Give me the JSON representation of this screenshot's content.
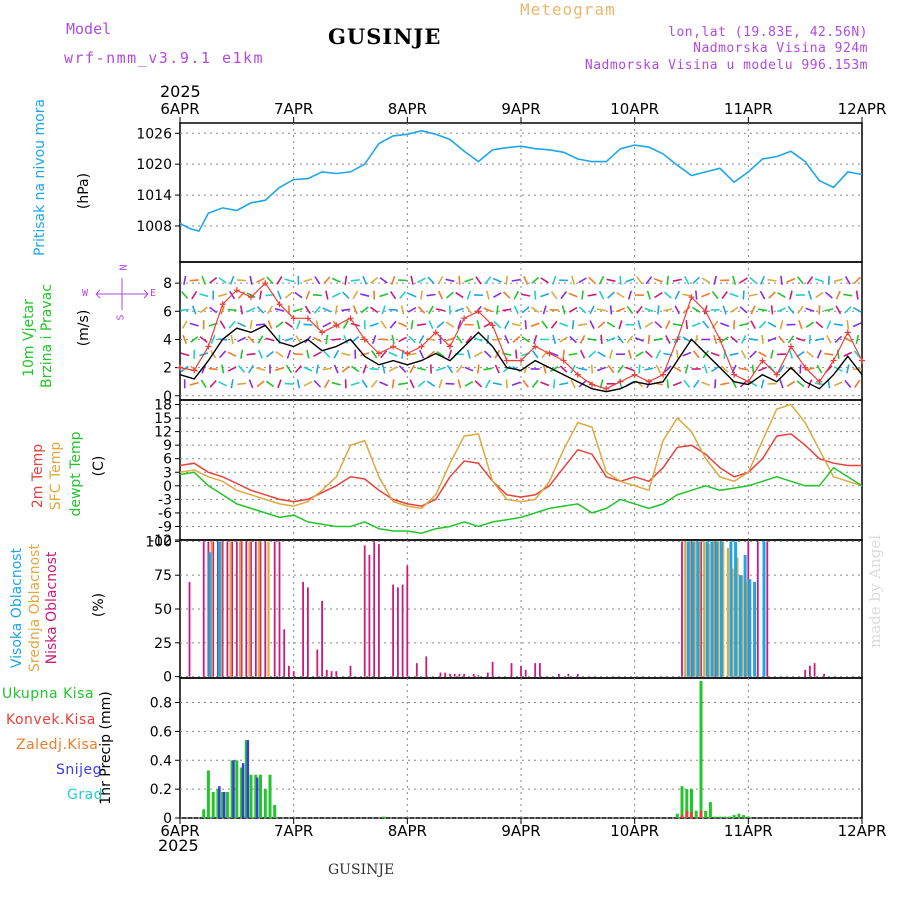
{
  "header": {
    "model_label": "Model",
    "model_name": "wrf-nmm_v3.9.1 e1km",
    "station": "GUSINJE",
    "meteogram": "Meteogram",
    "lonlat": "lon,lat (19.83E, 42.56N)",
    "altitude": "Nadmorska Visina 924m",
    "model_altitude": "Nadmorska Visina u modelu 996.153m",
    "year_top": "2025",
    "year_bottom": "2025",
    "footer_station": "GUSINJE",
    "watermark": "made by Angel"
  },
  "colors": {
    "pressure": "#1ea6e8",
    "temp2m": "#e8413c",
    "sfc_temp": "#e0a840",
    "dewpoint": "#22c52a",
    "wind_gust": "#e8413c",
    "wind_speed": "#000000",
    "cloud_high": "#1ea6e8",
    "cloud_mid": "#e0a840",
    "cloud_low": "#cc1a7a",
    "precip_total": "#22c52a",
    "precip_conv": "#e8413c",
    "precip_frozen": "#f07b28",
    "precip_snow": "#3a3ae0",
    "precip_graupel": "#22d0c8",
    "axis_violet": "#b04be0"
  },
  "dates": [
    "6APR",
    "7APR",
    "8APR",
    "9APR",
    "10APR",
    "11APR",
    "12APR"
  ],
  "chart_data": [
    {
      "type": "line",
      "panel": "pressure",
      "ylabel": "(hPa)",
      "side_labels": [
        "Pritisak na nivou mora"
      ],
      "yticks": [
        1008,
        1014,
        1020,
        1026
      ],
      "ylim": [
        1001,
        1028
      ],
      "x_unit": "hours since 6APR 00",
      "series": [
        {
          "x": [
            0,
            2,
            4,
            6,
            9,
            12,
            15,
            18,
            21,
            24,
            27,
            30,
            33,
            36,
            39,
            42,
            45,
            48,
            51,
            54,
            57,
            60,
            63,
            66,
            69,
            72,
            75,
            78,
            81,
            84,
            87,
            90,
            93,
            96,
            99,
            102,
            105,
            108,
            111,
            114,
            117,
            120,
            123,
            126,
            129,
            132,
            135,
            138,
            141,
            144
          ],
          "values": [
            1008.5,
            1007.5,
            1007,
            1010.5,
            1011.5,
            1011,
            1012.5,
            1013,
            1015.5,
            1017,
            1017.2,
            1018.5,
            1018.2,
            1018.5,
            1020,
            1024,
            1025.5,
            1025.8,
            1026.5,
            1025.8,
            1024.8,
            1022.5,
            1020.5,
            1022.8,
            1023.2,
            1023.5,
            1023,
            1022.8,
            1022.3,
            1021,
            1020.5,
            1020.5,
            1023,
            1023.7,
            1023.3,
            1022,
            1019.8,
            1017.8,
            1018.5,
            1019.2,
            1016.5,
            1018.5,
            1021,
            1021.5,
            1022.5,
            1020.5,
            1016.8,
            1015.5,
            1018.5,
            1018
          ]
        }
      ]
    },
    {
      "type": "line",
      "panel": "wind",
      "ylabel": "(m/s)",
      "side_labels": [
        "10m Vjetar",
        "Brzina i Pravac"
      ],
      "direction_key": {
        "north": "N",
        "south": "S",
        "west": "W",
        "east": "E"
      },
      "yticks": [
        0,
        2,
        4,
        6,
        8
      ],
      "ylim": [
        -0.3,
        9.5
      ],
      "x_unit": "hours since 6APR 00",
      "series": [
        {
          "name": "speed",
          "x": [
            0,
            3,
            6,
            9,
            12,
            15,
            18,
            21,
            24,
            27,
            30,
            33,
            36,
            39,
            42,
            45,
            48,
            51,
            54,
            57,
            60,
            63,
            66,
            69,
            72,
            75,
            78,
            81,
            84,
            87,
            90,
            93,
            96,
            99,
            102,
            105,
            108,
            111,
            114,
            117,
            120,
            123,
            126,
            129,
            132,
            135,
            138,
            141,
            144
          ],
          "values": [
            1.5,
            1.2,
            2.5,
            4,
            4.8,
            4.5,
            5,
            3.8,
            3.5,
            4,
            3.2,
            3.5,
            4,
            2.8,
            2.2,
            2.5,
            2.2,
            2.5,
            3,
            2.5,
            3.5,
            4.5,
            3.5,
            2,
            1.8,
            2.5,
            2,
            1.5,
            1,
            0.5,
            0.3,
            0.5,
            1,
            0.8,
            1,
            2.5,
            4,
            3,
            2,
            1,
            0.8,
            1.5,
            1,
            2,
            1,
            0.5,
            1.5,
            2.8,
            1.5
          ]
        },
        {
          "name": "gust",
          "x": [
            0,
            3,
            6,
            9,
            12,
            15,
            18,
            21,
            24,
            27,
            30,
            33,
            36,
            39,
            42,
            45,
            48,
            51,
            54,
            57,
            60,
            63,
            66,
            69,
            72,
            75,
            78,
            81,
            84,
            87,
            90,
            93,
            96,
            99,
            102,
            105,
            108,
            111,
            114,
            117,
            120,
            123,
            126,
            129,
            132,
            135,
            138,
            141,
            144
          ],
          "values": [
            2,
            1.8,
            3.5,
            6.5,
            7.5,
            7,
            8,
            6.5,
            5.5,
            5.5,
            4.5,
            5,
            5.5,
            4,
            3,
            3.5,
            3,
            3.5,
            4.5,
            3.5,
            5.5,
            6,
            5,
            2.5,
            2.5,
            3.5,
            3,
            2.5,
            1.5,
            0.8,
            0.5,
            1,
            1.5,
            1,
            1.5,
            4,
            7,
            6,
            4,
            1.5,
            1,
            2.5,
            1.5,
            3.5,
            2,
            1,
            2.5,
            4.5,
            2.5
          ]
        }
      ]
    },
    {
      "type": "line",
      "panel": "temperature",
      "ylabel": "(C)",
      "side_labels": [
        "2m Temp",
        "SFC Temp",
        "dewpt Temp"
      ],
      "yticks": [
        -12,
        -9,
        -6,
        -3,
        0,
        3,
        6,
        9,
        12,
        15,
        18
      ],
      "ylim": [
        -12,
        19
      ],
      "x_unit": "hours since 6APR 00",
      "series": [
        {
          "name": "2m Temp",
          "x": [
            0,
            3,
            6,
            9,
            12,
            15,
            18,
            21,
            24,
            27,
            30,
            33,
            36,
            39,
            42,
            45,
            48,
            51,
            54,
            57,
            60,
            63,
            66,
            69,
            72,
            75,
            78,
            81,
            84,
            87,
            90,
            93,
            96,
            99,
            102,
            105,
            108,
            111,
            114,
            117,
            120,
            123,
            126,
            129,
            132,
            135,
            138,
            141,
            144
          ],
          "values": [
            4.5,
            5,
            3,
            2,
            0.5,
            -1,
            -2,
            -3,
            -3.5,
            -3,
            -1.5,
            0,
            2,
            1.5,
            -1,
            -3,
            -4,
            -4.5,
            -3,
            2,
            5.5,
            5,
            1,
            -2,
            -2.5,
            -2,
            0,
            4,
            8,
            7,
            2,
            1,
            2,
            1,
            4,
            8.5,
            9,
            7,
            4,
            2,
            3,
            6,
            11,
            11.5,
            9,
            6,
            5,
            4.5,
            4.5
          ]
        },
        {
          "name": "SFC Temp",
          "x": [
            0,
            3,
            6,
            9,
            12,
            15,
            18,
            21,
            24,
            27,
            30,
            33,
            36,
            39,
            42,
            45,
            48,
            51,
            54,
            57,
            60,
            63,
            66,
            69,
            72,
            75,
            78,
            81,
            84,
            87,
            90,
            93,
            96,
            99,
            102,
            105,
            108,
            111,
            114,
            117,
            120,
            123,
            126,
            129,
            132,
            135,
            138,
            141,
            144
          ],
          "values": [
            3,
            3.5,
            2,
            1,
            -1,
            -2,
            -3,
            -4,
            -4.5,
            -3.5,
            -1,
            2,
            9,
            10,
            2,
            -3.5,
            -4.5,
            -5,
            -2,
            5,
            11,
            11.5,
            1,
            -3,
            -3.5,
            -3,
            1,
            8,
            14,
            13,
            3,
            1,
            0,
            -1,
            10,
            15,
            12,
            6,
            2,
            1,
            3,
            10,
            17,
            18,
            14,
            8,
            2,
            1,
            0
          ]
        },
        {
          "name": "dewpt Temp",
          "x": [
            0,
            3,
            6,
            9,
            12,
            15,
            18,
            21,
            24,
            27,
            30,
            33,
            36,
            39,
            42,
            45,
            48,
            51,
            54,
            57,
            60,
            63,
            66,
            69,
            72,
            75,
            78,
            81,
            84,
            87,
            90,
            93,
            96,
            99,
            102,
            105,
            108,
            111,
            114,
            117,
            120,
            123,
            126,
            129,
            132,
            135,
            138,
            141,
            144
          ],
          "values": [
            2.5,
            3,
            0,
            -2,
            -4,
            -5,
            -6,
            -7,
            -6.5,
            -8,
            -8.5,
            -9,
            -9,
            -8,
            -9.5,
            -10,
            -10,
            -10.5,
            -9.5,
            -9,
            -8,
            -9,
            -8,
            -7.5,
            -7,
            -6,
            -5,
            -4.5,
            -4,
            -6,
            -5,
            -3,
            -4,
            -5,
            -4,
            -2,
            -1,
            0,
            -1,
            -0.5,
            0,
            1,
            2,
            1,
            0,
            0,
            4,
            2,
            0
          ]
        }
      ]
    },
    {
      "type": "bar",
      "panel": "clouds",
      "ylabel": "(%)",
      "side_labels": [
        "Visoka Oblacnost",
        "Srednja Oblacnost",
        "Niska Oblacnost"
      ],
      "yticks": [
        0,
        25,
        50,
        75,
        100
      ],
      "ylim": [
        0,
        100
      ],
      "x_unit": "hours since 6APR 00",
      "series": [
        {
          "name": "Niska Oblacnost",
          "x": [
            2,
            5,
            6,
            7,
            8,
            9,
            10,
            11,
            12,
            13,
            14,
            15,
            16,
            17,
            18,
            20,
            21,
            22,
            23,
            24,
            26,
            27,
            29,
            30,
            31,
            32,
            33,
            36,
            39,
            40,
            41,
            42,
            45,
            46,
            47,
            48,
            50,
            52,
            55,
            56,
            57,
            58,
            59,
            60,
            62,
            63,
            65,
            66,
            70,
            72,
            73,
            75,
            76,
            80,
            82,
            84,
            106,
            108,
            110,
            113,
            120,
            122,
            124,
            132,
            133,
            134,
            136
          ],
          "values": [
            70,
            100,
            100,
            100,
            100,
            100,
            100,
            100,
            100,
            100,
            100,
            100,
            100,
            100,
            100,
            100,
            100,
            35,
            8,
            4,
            70,
            66,
            20,
            56,
            5,
            4,
            4,
            8,
            97,
            90,
            100,
            98,
            68,
            66,
            68,
            82,
            10,
            15,
            3,
            3,
            2,
            2,
            2,
            2,
            2,
            1,
            3,
            11,
            10,
            8,
            5,
            10,
            10,
            2,
            2,
            2,
            100,
            100,
            100,
            100,
            100,
            100,
            100,
            5,
            8,
            10,
            2
          ]
        },
        {
          "name": "Srednja Oblacnost",
          "x": [
            7,
            9,
            11,
            13,
            15,
            17,
            19,
            107,
            108,
            109,
            110,
            111,
            112,
            113,
            114,
            115,
            116,
            117,
            118,
            119,
            120
          ],
          "values": [
            100,
            100,
            100,
            100,
            100,
            100,
            100,
            100,
            100,
            100,
            100,
            100,
            98,
            100,
            100,
            100,
            95,
            80,
            88,
            75,
            70
          ]
        },
        {
          "name": "Visoka Oblacnost",
          "x": [
            6,
            8,
            107,
            108,
            109,
            111,
            112,
            113,
            114,
            116,
            117,
            118,
            119,
            120,
            121,
            123
          ],
          "values": [
            92,
            100,
            100,
            100,
            100,
            100,
            100,
            100,
            100,
            100,
            100,
            75,
            90,
            72,
            70,
            100
          ]
        }
      ]
    },
    {
      "type": "bar",
      "panel": "precipitation",
      "ylabel": "1hr Precip (mm)",
      "side_labels": [
        "Ukupna Kisa",
        "Konvek.Kisa",
        "Zaledj.Kisa",
        "Snijeg",
        "Grad"
      ],
      "yticks": [
        0,
        0.2,
        0.4,
        0.6,
        0.8
      ],
      "ylim": [
        0,
        0.97
      ],
      "x_unit": "hours since 6APR 00",
      "series": [
        {
          "name": "Ukupna Kisa",
          "x": [
            5,
            6,
            7,
            8,
            9,
            10,
            11,
            12,
            13,
            14,
            15,
            16,
            17,
            18,
            19,
            20,
            43,
            105,
            106,
            107,
            108,
            109,
            110,
            111,
            112,
            113,
            114,
            115,
            116,
            117,
            118,
            119,
            120
          ],
          "values": [
            0.06,
            0.33,
            0.18,
            0.2,
            0.18,
            0.18,
            0.4,
            0.4,
            0.35,
            0.54,
            0.3,
            0.3,
            0.3,
            0.2,
            0.3,
            0.09,
            0.01,
            0.03,
            0.22,
            0.2,
            0.2,
            0.05,
            0.95,
            0.05,
            0.11,
            0.01,
            0.01,
            0.01,
            0.01,
            0.02,
            0.03,
            0.02,
            0.01
          ]
        },
        {
          "name": "Konvek.Kisa",
          "x": [
            106,
            107,
            108,
            110
          ],
          "values": [
            0.02,
            0.05,
            0.04,
            0.05
          ]
        },
        {
          "name": "Snijeg",
          "x": [
            8,
            9,
            11,
            13,
            14,
            16
          ],
          "values": [
            0.22,
            0.18,
            0.4,
            0.38,
            0.54,
            0.28
          ]
        }
      ]
    }
  ]
}
